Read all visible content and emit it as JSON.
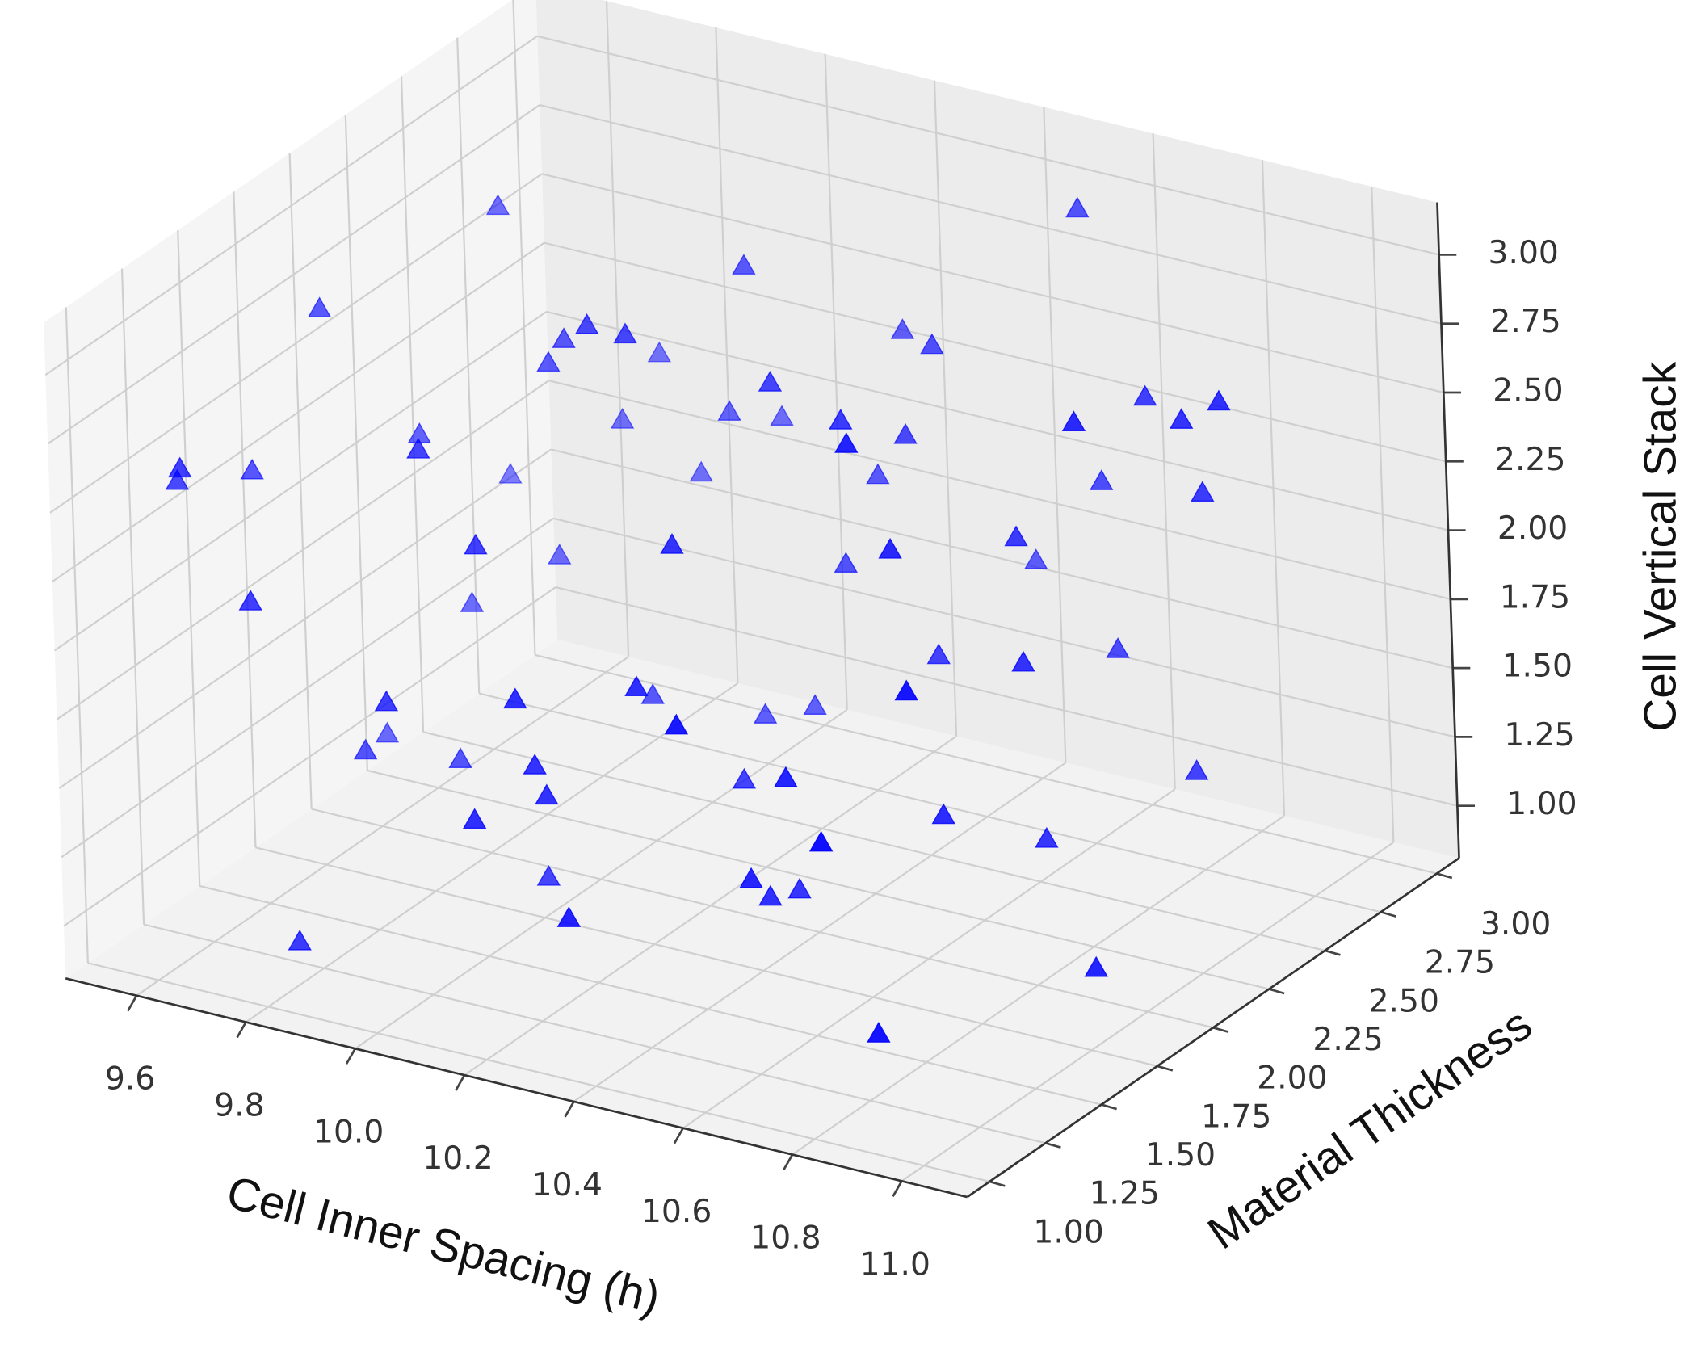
{
  "chart_data": {
    "type": "scatter3d",
    "xlabel": "Cell Inner Spacing (h)",
    "ylabel": "Material Thickness",
    "zlabel": "Cell Vertical Stack",
    "color": "#0000ff",
    "grid": true,
    "xlim": [
      9.47,
      11.12
    ],
    "ylim": [
      0.9,
      3.1
    ],
    "zlim": [
      0.81,
      3.19
    ],
    "xticks": [
      9.6,
      9.8,
      {
        "value": 10,
        "label": "10.0"
      },
      10.2,
      10.4,
      10.6,
      10.8,
      {
        "value": 11,
        "label": "11.0"
      }
    ],
    "yticks": [
      {
        "value": 1,
        "label": "1.00"
      },
      1.25,
      {
        "value": 1.5,
        "label": "1.50"
      },
      1.75,
      {
        "value": 2,
        "label": "2.00"
      },
      2.25,
      {
        "value": 2.5,
        "label": "2.50"
      },
      2.75,
      {
        "value": 3,
        "label": "3.00"
      }
    ],
    "zticks": [
      {
        "value": 1,
        "label": "1.00"
      },
      1.25,
      {
        "value": 1.5,
        "label": "1.50"
      },
      1.75,
      {
        "value": 2,
        "label": "2.00"
      },
      2.25,
      {
        "value": 2.5,
        "label": "2.50"
      },
      2.75,
      {
        "value": 3,
        "label": "3.00"
      }
    ],
    "x": [
      9.52,
      9.58,
      9.64,
      9.7,
      9.76,
      9.82,
      9.88,
      9.94,
      10.0,
      10.06,
      10.12,
      10.18,
      10.24,
      10.3,
      10.36,
      10.42,
      10.48,
      10.54,
      10.6,
      10.66,
      10.72,
      10.78,
      10.84,
      10.9,
      9.55,
      9.61,
      9.67,
      9.73,
      9.79,
      9.85,
      9.91,
      9.97,
      10.03,
      10.09,
      10.15,
      10.21,
      10.27,
      10.33,
      10.39,
      10.45,
      10.51,
      10.57,
      10.63,
      10.69,
      10.75,
      10.81,
      10.87,
      10.93,
      9.53,
      9.6,
      9.69,
      9.75,
      9.83,
      9.9,
      9.98,
      10.05,
      10.11,
      10.19,
      10.26,
      10.32,
      10.4,
      10.47,
      10.53,
      10.61,
      10.68,
      10.74,
      10.83,
      10.88,
      10.95,
      11.0,
      10.2,
      9.65
    ],
    "y": [
      2.8,
      1.2,
      2.5,
      1.7,
      2.9,
      1.1,
      2.2,
      3.0,
      1.5,
      2.6,
      1.9,
      1.3,
      2.7,
      2.1,
      1.0,
      2.4,
      1.6,
      2.9,
      1.4,
      2.3,
      1.8,
      2.6,
      1.2,
      2.0,
      1.6,
      2.4,
      1.0,
      2.8,
      1.9,
      2.2,
      1.3,
      2.7,
      1.7,
      2.5,
      1.1,
      2.9,
      2.0,
      1.4,
      2.6,
      1.8,
      2.3,
      1.0,
      2.8,
      1.5,
      2.1,
      2.7,
      1.3,
      2.4,
      2.2,
      1.8,
      2.6,
      1.1,
      2.9,
      1.5,
      2.3,
      1.9,
      2.7,
      1.2,
      2.5,
      1.6,
      3.0,
      2.0,
      1.4,
      2.8,
      1.7,
      2.2,
      1.0,
      2.6,
      1.9,
      2.4,
      1.3,
      2.1
    ],
    "z": [
      1.6,
      2.5,
      2.8,
      1.3,
      2.1,
      1.0,
      2.6,
      1.9,
      2.3,
      1.1,
      2.9,
      1.7,
      2.0,
      2.7,
      1.4,
      2.4,
      1.2,
      3.0,
      1.8,
      2.2,
      1.5,
      2.6,
      1.1,
      2.9,
      2.3,
      1.4,
      2.7,
      1.9,
      1.2,
      2.5,
      1.8,
      2.1,
      1.0,
      2.8,
      1.6,
      2.4,
      1.3,
      2.0,
      2.6,
      1.1,
      1.7,
      2.2,
      1.5,
      3.0,
      1.9,
      1.2,
      2.3,
      2.7,
      1.0,
      2.8,
      1.5,
      2.2,
      1.7,
      2.6,
      1.3,
      2.9,
      1.1,
      2.0,
      1.8,
      2.4,
      1.6,
      2.7,
      1.4,
      2.1,
      2.5,
      1.2,
      1.9,
      2.3,
      1.0,
      2.8,
      1.6,
      2.2
    ]
  }
}
